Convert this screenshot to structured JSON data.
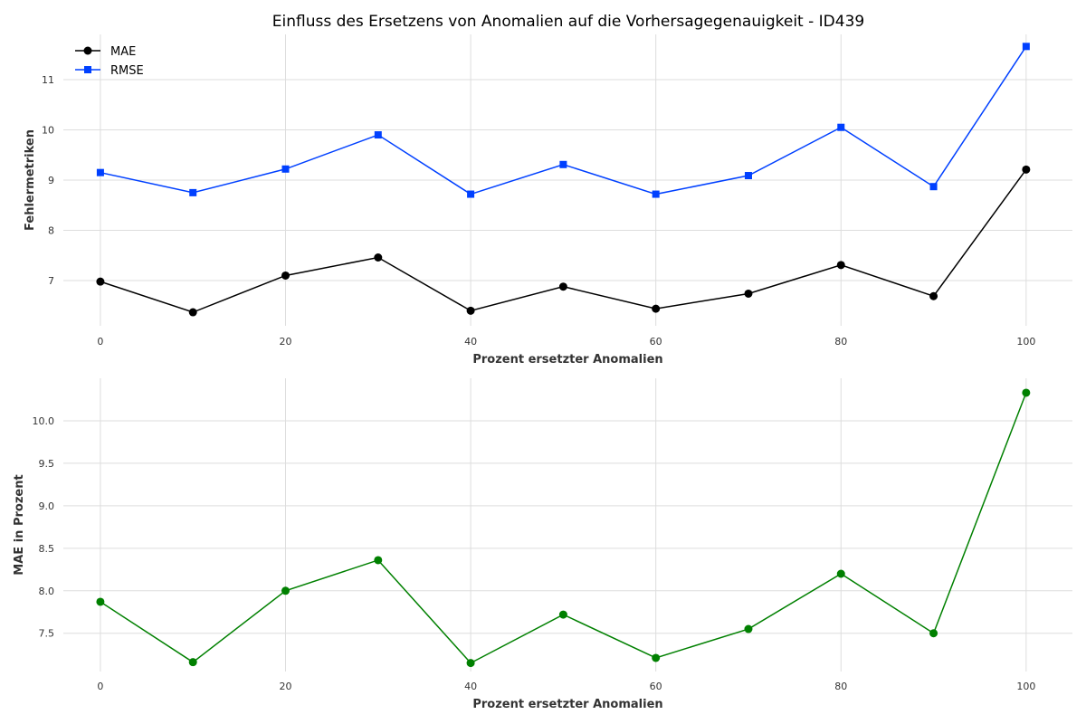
{
  "chart_data": [
    {
      "type": "line",
      "title": "Einfluss des Ersetzens von Anomalien auf die Vorhersagegenauigkeit - ID439",
      "xlabel": "Prozent ersetzter Anomalien",
      "ylabel": "Fehlermetriken",
      "x": [
        0,
        10,
        20,
        30,
        40,
        50,
        60,
        70,
        80,
        90,
        100
      ],
      "xticks": [
        "0",
        "20",
        "40",
        "60",
        "80",
        "100"
      ],
      "yticks": [
        "7",
        "8",
        "9",
        "10",
        "11"
      ],
      "ylim": [
        6.1,
        11.9
      ],
      "grid": true,
      "legend_position": "top-left",
      "series": [
        {
          "name": "MAE",
          "color": "#000000",
          "marker": "circle",
          "values": [
            6.98,
            6.37,
            7.1,
            7.46,
            6.4,
            6.88,
            6.44,
            6.74,
            7.31,
            6.69,
            9.21
          ]
        },
        {
          "name": "RMSE",
          "color": "#0040ff",
          "marker": "square",
          "values": [
            9.15,
            8.75,
            9.22,
            9.9,
            8.72,
            9.31,
            8.72,
            9.09,
            10.05,
            8.87,
            11.66
          ]
        }
      ]
    },
    {
      "type": "line",
      "title": "",
      "xlabel": "Prozent ersetzter Anomalien",
      "ylabel": "MAE in Prozent",
      "x": [
        0,
        10,
        20,
        30,
        40,
        50,
        60,
        70,
        80,
        90,
        100
      ],
      "xticks": [
        "0",
        "20",
        "40",
        "60",
        "80",
        "100"
      ],
      "yticks": [
        "7.5",
        "8.0",
        "8.5",
        "9.0",
        "9.5",
        "10.0"
      ],
      "ylim": [
        7.05,
        10.5
      ],
      "grid": true,
      "series": [
        {
          "color": "#008000",
          "marker": "circle",
          "values": [
            7.87,
            7.16,
            8.0,
            8.36,
            7.15,
            7.72,
            7.21,
            7.55,
            8.2,
            7.5,
            10.33
          ]
        }
      ]
    }
  ]
}
